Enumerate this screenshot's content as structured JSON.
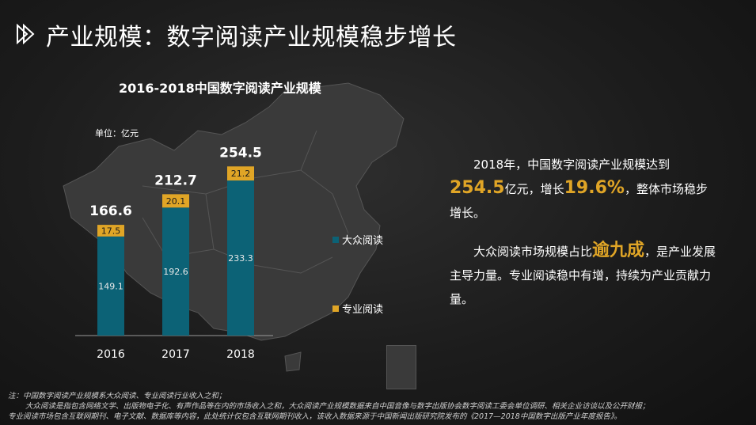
{
  "page": {
    "title": "产业规模：数字阅读产业规模稳步增长"
  },
  "chart_data": {
    "type": "bar",
    "stacked": true,
    "title": "2016-2018中国数字阅读产业规模",
    "unit_label": "单位：亿元",
    "categories": [
      "2016",
      "2017",
      "2018"
    ],
    "series": [
      {
        "name": "大众阅读",
        "values": [
          149.1,
          192.6,
          233.3
        ],
        "color": "#0c6276",
        "label_color": "#e8e8e8"
      },
      {
        "name": "专业阅读",
        "values": [
          17.5,
          20.1,
          21.2
        ],
        "color": "#e0a526",
        "label_color": "#1a1a1a"
      }
    ],
    "totals": [
      166.6,
      212.7,
      254.5
    ],
    "legend_position": "right",
    "grid": false
  },
  "analysis": {
    "p1": {
      "t1": "2018年，中国数字阅读产业规模达到",
      "h1": "254.5",
      "t2": "亿元，增长",
      "h2": "19.6%",
      "t3": "，整体市场稳步增长。"
    },
    "p2": {
      "t1": "大众阅读市场规模占比",
      "h1": "逾九成",
      "t2": "，是产业发展主导力量。专业阅读稳中有增，持续为产业贡献力量。"
    }
  },
  "footnote": {
    "line1": "注：中国数字阅读产业规模系大众阅读、专业阅读行业收入之和；",
    "line2": "大众阅读是指包含网络文学、出版物电子化、有声作品等在内的市场收入之和，大众阅读产业规模数据来自中国音像与数字出版协会数字阅读工委会单位调研、相关企业访谈以及公开财报；",
    "line3": "专业阅读市场包含互联网期刊、电子文献、数据库等内容，此处统计仅包含互联网期刊收入，该收入数据来源于中国新闻出版研究院发布的《2017—2018中国数字出版产业年度报告》。"
  }
}
